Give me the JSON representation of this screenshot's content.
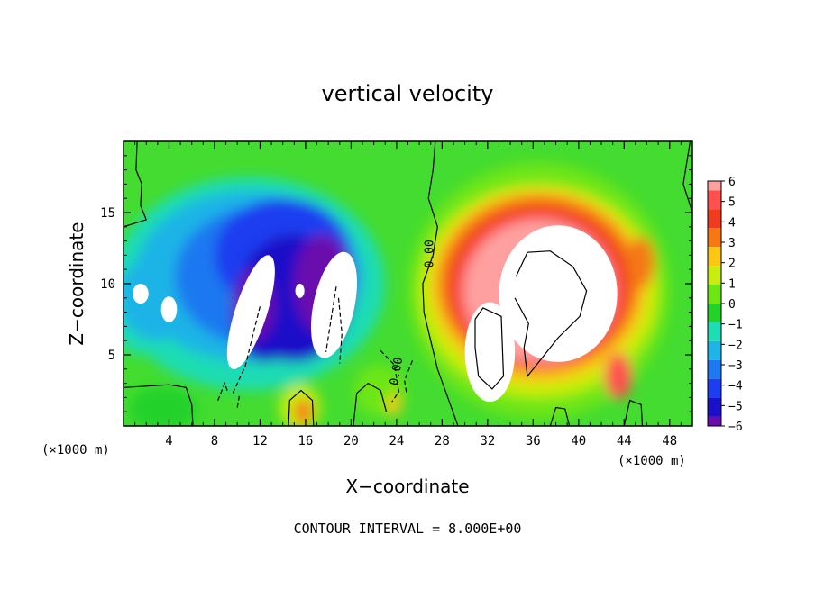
{
  "chart_data": {
    "type": "heatmap",
    "title": "vertical velocity",
    "xlabel": "X−coordinate",
    "ylabel": "Z−coordinate",
    "x_scale_label": "(×1000 m)",
    "z_scale_label": "(×1000 m)",
    "xlim": [
      0,
      50
    ],
    "zlim": [
      0,
      20
    ],
    "x_ticks": [
      "4",
      "8",
      "12",
      "16",
      "20",
      "24",
      "28",
      "32",
      "36",
      "40",
      "44",
      "48"
    ],
    "z_ticks": [
      "5",
      "10",
      "15"
    ],
    "colorbar": {
      "labels": [
        "6",
        "5",
        "4",
        "3",
        "2",
        "1",
        "0",
        "−1",
        "−2",
        "−3",
        "−4",
        "−5",
        "−6"
      ],
      "range": [
        -6,
        6
      ]
    },
    "contour_label": "0.00",
    "footer": "CONTOUR INTERVAL = 8.000E+00",
    "colors": {
      "neg6": "#6a0dad",
      "neg5": "#1a10c8",
      "neg4": "#1e3cf0",
      "neg3": "#1e78f0",
      "neg2": "#1eb4e6",
      "neg1": "#1edcb4",
      "zero": "#22d22a",
      "pos1": "#6ee614",
      "pos2": "#c8ee10",
      "pos3": "#fac814",
      "pos4": "#f57814",
      "pos5": "#f03c1e",
      "pos6": "#ff5050",
      "pos7": "#ffa0a0",
      "beyond": "#ffffff",
      "background": "#44dc30"
    }
  }
}
